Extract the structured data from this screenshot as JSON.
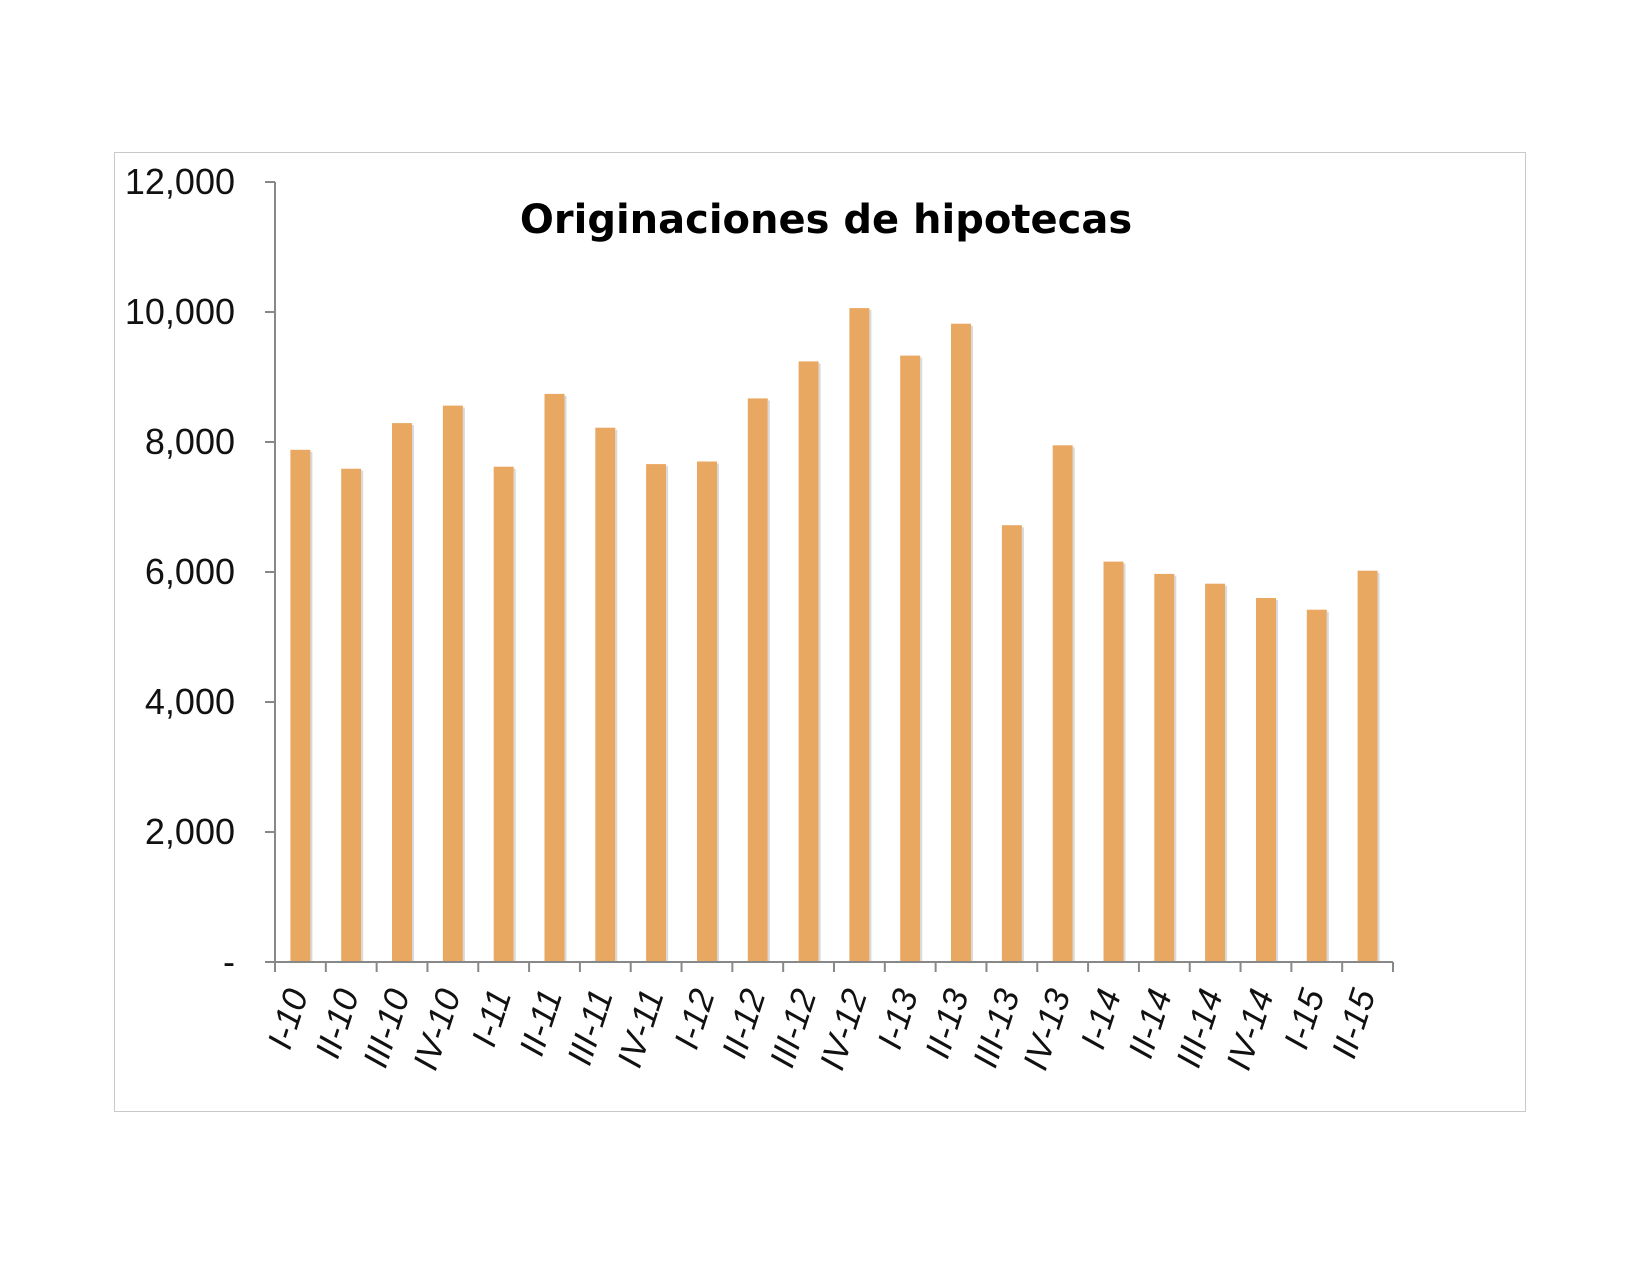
{
  "chart_data": {
    "type": "bar",
    "title": "Originaciones de hipotecas",
    "xlabel": "",
    "ylabel": "",
    "ylim": [
      0,
      12000
    ],
    "yticks": [
      0,
      2000,
      4000,
      6000,
      8000,
      10000,
      12000
    ],
    "ytick_labels": [
      "-",
      "2,000",
      "4,000",
      "6,000",
      "8,000",
      "10,000",
      "12,000"
    ],
    "categories": [
      "I-10",
      "II-10",
      "III-10",
      "IV-10",
      "I-11",
      "II-11",
      "III-11",
      "IV-11",
      "I-12",
      "II-12",
      "III-12",
      "IV-12",
      "I-13",
      "II-13",
      "III-13",
      "IV-13",
      "I-14",
      "II-14",
      "III-14",
      "IV-14",
      "I-15",
      "II-15"
    ],
    "values": [
      7880,
      7590,
      8290,
      8560,
      7620,
      8740,
      8220,
      7660,
      7700,
      8670,
      9240,
      10060,
      9330,
      9820,
      6720,
      7950,
      6160,
      5970,
      5820,
      5600,
      5420,
      6020
    ],
    "grid": false,
    "legend": "none",
    "colors": {
      "bar": "#E8A862",
      "axis": "#888888",
      "frame": "#c9c9c9"
    }
  }
}
